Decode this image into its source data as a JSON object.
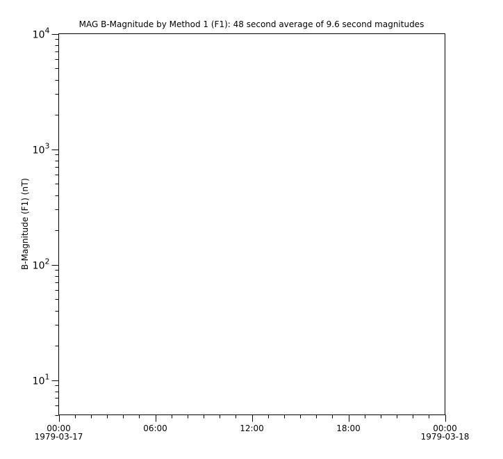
{
  "chart_data": {
    "type": "line",
    "title": "MAG  B-Magnitude by Method 1 (F1): 48 second average of 9.6 second magnitudes",
    "xlabel": "",
    "ylabel": "B-Magnitude (F1) (nT)",
    "yscale": "log",
    "ylim": [
      5,
      10000
    ],
    "xlim": [
      "1979-03-17 00:00",
      "1979-03-18 00:00"
    ],
    "x_major_ticks_hours": [
      0,
      6,
      12,
      18,
      24
    ],
    "x_tick_labels": [
      {
        "time": "00:00",
        "date": "1979-03-17"
      },
      {
        "time": "06:00",
        "date": ""
      },
      {
        "time": "12:00",
        "date": ""
      },
      {
        "time": "18:00",
        "date": ""
      },
      {
        "time": "00:00",
        "date": "1979-03-18"
      }
    ],
    "y_tick_labels": [
      {
        "value": 10,
        "base": "10",
        "exp": "1"
      },
      {
        "value": 100,
        "base": "10",
        "exp": "2"
      },
      {
        "value": 1000,
        "base": "10",
        "exp": "3"
      },
      {
        "value": 10000,
        "base": "10",
        "exp": "4"
      }
    ],
    "series": [],
    "grid": false,
    "legend": "none"
  }
}
